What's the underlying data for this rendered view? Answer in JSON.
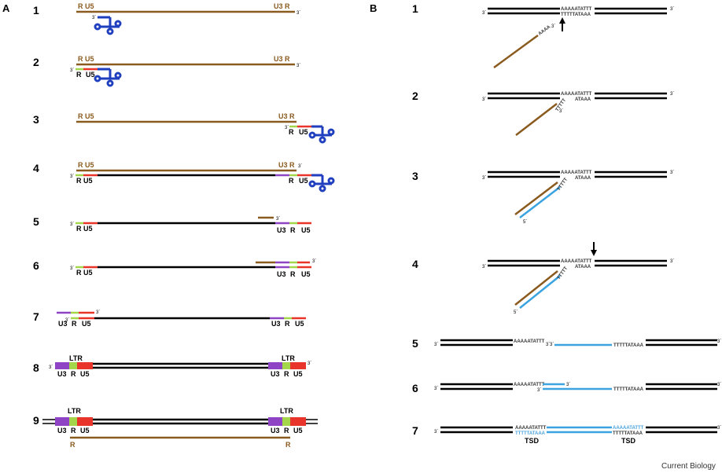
{
  "figure": {
    "panel_a": "A",
    "panel_b": "B",
    "credit": "Current Biology"
  },
  "colors": {
    "rna": "#8a5a1e",
    "dna": "#000000",
    "u3": "#8e44c4",
    "r": "#a4d64a",
    "u5": "#e8342a",
    "trna": "#1f3fbf",
    "new_dna": "#3ba3e0"
  },
  "panel_a": {
    "steps": [
      "1",
      "2",
      "3",
      "4",
      "5",
      "6",
      "7",
      "8",
      "9"
    ],
    "labels": {
      "r_u5": "R U5",
      "u3_r": "U3 R",
      "r": "R",
      "u5": "U5",
      "u3": "U3",
      "ltr": "LTR",
      "three_prime": "3´"
    }
  },
  "panel_b": {
    "steps": [
      "1",
      "2",
      "3",
      "4",
      "5",
      "6",
      "7"
    ],
    "seq_top": "AAAAATATTT",
    "seq_bottom": "TTTTTATAAA",
    "seq_partial": "ATAAA",
    "seq_tail": "AAAA",
    "seq_tail_rc": "TTTTT",
    "tsd": "TSD",
    "three_prime": "3´",
    "five_prime": "5´"
  }
}
